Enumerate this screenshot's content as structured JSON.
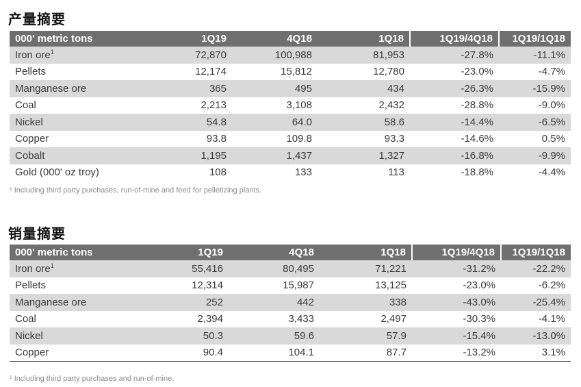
{
  "production": {
    "title": "产量摘要",
    "headers": [
      "000' metric tons",
      "1Q19",
      "4Q18",
      "1Q18",
      "1Q19/4Q18",
      "1Q19/1Q18"
    ],
    "rows": [
      {
        "label": "Iron ore",
        "sup": "1",
        "values": [
          "72,870",
          "100,988",
          "81,953",
          "-27.8%",
          "-11.1%"
        ]
      },
      {
        "label": "Pellets",
        "sup": "",
        "values": [
          "12,174",
          "15,812",
          "12,780",
          "-23.0%",
          "-4.7%"
        ]
      },
      {
        "label": "Manganese ore",
        "sup": "",
        "values": [
          "365",
          "495",
          "434",
          "-26.3%",
          "-15.9%"
        ]
      },
      {
        "label": "Coal",
        "sup": "",
        "values": [
          "2,213",
          "3,108",
          "2,432",
          "-28.8%",
          "-9.0%"
        ]
      },
      {
        "label": "Nickel",
        "sup": "",
        "values": [
          "54.8",
          "64.0",
          "58.6",
          "-14.4%",
          "-6.5%"
        ]
      },
      {
        "label": "Copper",
        "sup": "",
        "values": [
          "93.8",
          "109.8",
          "93.3",
          "-14.6%",
          "0.5%"
        ]
      },
      {
        "label": "Cobalt",
        "sup": "",
        "values": [
          "1,195",
          "1,437",
          "1,327",
          "-16.8%",
          "-9.9%"
        ]
      },
      {
        "label": "Gold (000' oz troy)",
        "sup": "",
        "values": [
          "108",
          "133",
          "113",
          "-18.8%",
          "-4.4%"
        ]
      }
    ],
    "footnote": "¹ Including third party purchases, run-of-mine and feed for pelletizing plants."
  },
  "sales": {
    "title": "销量摘要",
    "headers": [
      "000' metric tons",
      "1Q19",
      "4Q18",
      "1Q18",
      "1Q19/4Q18",
      "1Q19/1Q18"
    ],
    "rows": [
      {
        "label": "Iron ore",
        "sup": "1",
        "values": [
          "55,416",
          "80,495",
          "71,221",
          "-31.2%",
          "-22.2%"
        ]
      },
      {
        "label": "Pellets",
        "sup": "",
        "values": [
          "12,314",
          "15,987",
          "13,125",
          "-23.0%",
          "-6.2%"
        ]
      },
      {
        "label": "Manganese ore",
        "sup": "",
        "values": [
          "252",
          "442",
          "338",
          "-43.0%",
          "-25.4%"
        ]
      },
      {
        "label": "Coal",
        "sup": "",
        "values": [
          "2,394",
          "3,433",
          "2,497",
          "-30.3%",
          "-4.1%"
        ]
      },
      {
        "label": "Nickel",
        "sup": "",
        "values": [
          "50.3",
          "59.6",
          "57.9",
          "-15.4%",
          "-13.0%"
        ]
      },
      {
        "label": "Copper",
        "sup": "",
        "values": [
          "90.4",
          "104.1",
          "87.7",
          "-13.2%",
          "3.1%"
        ]
      }
    ],
    "footnote": "¹ Including third party purchases and run-of-mine."
  }
}
